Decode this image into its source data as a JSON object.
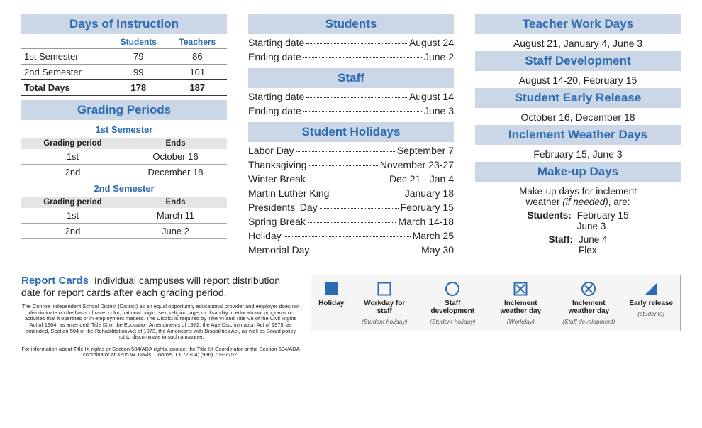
{
  "colors": {
    "accent": "#2b6bb1",
    "band": "#cbd7e6"
  },
  "col1": {
    "doi": {
      "title": "Days of Instruction",
      "headers": [
        "",
        "Students",
        "Teachers"
      ],
      "rows": [
        {
          "label": "1st Semester",
          "students": "79",
          "teachers": "86"
        },
        {
          "label": "2nd Semester",
          "students": "99",
          "teachers": "101"
        }
      ],
      "total": {
        "label": "Total Days",
        "students": "178",
        "teachers": "187"
      }
    },
    "gp": {
      "title": "Grading Periods",
      "sem1": {
        "title": "1st Semester",
        "head": [
          "Grading period",
          "Ends"
        ],
        "rows": [
          {
            "p": "1st",
            "e": "October 16"
          },
          {
            "p": "2nd",
            "e": "December 18"
          }
        ]
      },
      "sem2": {
        "title": "2nd Semester",
        "head": [
          "Grading period",
          "Ends"
        ],
        "rows": [
          {
            "p": "1st",
            "e": "March 11"
          },
          {
            "p": "2nd",
            "e": "June 2"
          }
        ]
      }
    }
  },
  "col2": {
    "students": {
      "title": "Students",
      "rows": [
        {
          "k": "Starting date",
          "v": "August 24"
        },
        {
          "k": "Ending date",
          "v": "June 2"
        }
      ]
    },
    "staff": {
      "title": "Staff",
      "rows": [
        {
          "k": "Starting date",
          "v": "August 14"
        },
        {
          "k": "Ending date",
          "v": "June 3"
        }
      ]
    },
    "holidays": {
      "title": "Student Holidays",
      "rows": [
        {
          "k": "Labor Day",
          "v": "September 7"
        },
        {
          "k": "Thanksgiving",
          "v": "November 23-27"
        },
        {
          "k": "Winter Break",
          "v": "Dec 21 - Jan 4"
        },
        {
          "k": "Martin Luther King",
          "v": "January 18"
        },
        {
          "k": "Presidents' Day",
          "v": "February 15"
        },
        {
          "k": "Spring Break",
          "v": "March 14-18"
        },
        {
          "k": "Holiday",
          "v": "March 25"
        },
        {
          "k": "Memorial Day",
          "v": "May 30"
        }
      ]
    }
  },
  "col3": {
    "twd": {
      "title": "Teacher Work Days",
      "text": "August 21, January 4, June 3"
    },
    "sdev": {
      "title": "Staff Development",
      "text": "August 14-20, February 15"
    },
    "ser": {
      "title": "Student Early Release",
      "text": "October 16, December 18"
    },
    "iwd": {
      "title": "Inclement Weather Days",
      "text": "February 15, June 3"
    },
    "makeup": {
      "title": "Make-up Days",
      "intro1": "Make-up days for inclement",
      "intro2": "weather ",
      "intro2i": "(if needed)",
      "intro2b": ", are:",
      "students_label": "Students:",
      "students_v1": "February 15",
      "students_v2": "June 3",
      "staff_label": "Staff:",
      "staff_v1": "June 4",
      "staff_v2": "Flex"
    }
  },
  "footer": {
    "report": {
      "label": "Report Cards",
      "text": "Individual campuses will report distribution date for report cards after each grading period."
    },
    "disclaimer": "The Conroe Independent School District (District) as an equal opportunity educational provider and employer does not discriminate on the basis of race, color, national origin, sex, religion, age, or disability in educational programs or activities that it operates or in employment matters. The District is required by Title VI and Title VII of the Civil Rights Act of 1964, as amended, Title IX of the Education Amendments of 1972, the Age Discrimination Act of 1975, as amended, Section 504 of the Rehabilitation Act of 1973, the Americans with Disabilities Act, as well as Board policy not to discriminate in such a manner.",
    "disclaimer2": "For information about Title IX rights or Section 504/ADA rights, contact the Title IX Coordinator or the Section 504/ADA coordinator at 3205 W. Davis, Conroe, TX 77304; (936) 709-7752.",
    "legend": [
      {
        "t1": "Holiday",
        "t2": ""
      },
      {
        "t1": "Workday for staff",
        "t2": "(Student holiday)"
      },
      {
        "t1": "Staff development",
        "t2": "(Student holiday)"
      },
      {
        "t1": "Inclement weather day",
        "t2": "(Workday)"
      },
      {
        "t1": "Inclement weather day",
        "t2": "(Staff development)"
      },
      {
        "t1": "Early release",
        "t2": "(students)"
      }
    ]
  }
}
